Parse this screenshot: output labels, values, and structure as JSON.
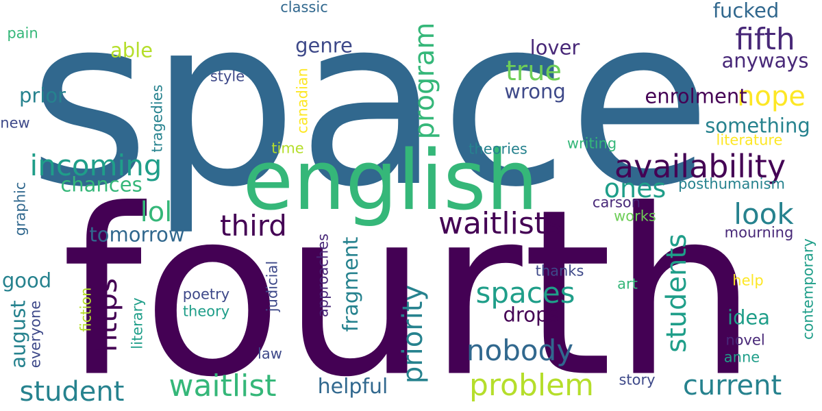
{
  "palette": {
    "dark_purple": "#440154",
    "indigo": "#482878",
    "slate": "#3e4989",
    "steel": "#31688e",
    "teal": "#26828e",
    "sea": "#1f9e89",
    "jade": "#35b779",
    "lime": "#6ece58",
    "chartreuse": "#b5de2b",
    "yellow": "#fde725"
  },
  "words": [
    {
      "text": "space",
      "weight": 1.0,
      "color": "steel"
    },
    {
      "text": "fourth",
      "weight": 0.98,
      "color": "dark_purple"
    },
    {
      "text": "english",
      "weight": 0.56,
      "color": "jade"
    },
    {
      "text": "availability",
      "weight": 0.2,
      "color": "dark_purple"
    },
    {
      "text": "waitlists",
      "weight": 0.19,
      "color": "dark_purple"
    },
    {
      "text": "incoming",
      "weight": 0.19,
      "color": "sea"
    },
    {
      "text": "fifth",
      "weight": 0.19,
      "color": "indigo"
    },
    {
      "text": "waitlist",
      "weight": 0.19,
      "color": "jade"
    },
    {
      "text": "student",
      "weight": 0.18,
      "color": "teal"
    },
    {
      "text": "spaces",
      "weight": 0.18,
      "color": "sea"
    },
    {
      "text": "program",
      "weight": 0.18,
      "color": "jade"
    },
    {
      "text": "priority",
      "weight": 0.18,
      "color": "teal"
    },
    {
      "text": "problem",
      "weight": 0.18,
      "color": "chartreuse"
    },
    {
      "text": "current",
      "weight": 0.17,
      "color": "teal"
    },
    {
      "text": "nobody",
      "weight": 0.17,
      "color": "steel"
    },
    {
      "text": "students",
      "weight": 0.17,
      "color": "sea"
    },
    {
      "text": "third",
      "weight": 0.17,
      "color": "dark_purple"
    },
    {
      "text": "look",
      "weight": 0.17,
      "color": "teal"
    },
    {
      "text": "https",
      "weight": 0.17,
      "color": "dark_purple"
    },
    {
      "text": "nope",
      "weight": 0.17,
      "color": "yellow"
    },
    {
      "text": "true",
      "weight": 0.17,
      "color": "lime"
    },
    {
      "text": "lol",
      "weight": 0.16,
      "color": "jade"
    },
    {
      "text": "ones",
      "weight": 0.16,
      "color": "sea"
    },
    {
      "text": "fragment",
      "weight": 0.11,
      "color": "teal"
    },
    {
      "text": "helpful",
      "weight": 0.11,
      "color": "steel"
    },
    {
      "text": "tomorrow",
      "weight": 0.11,
      "color": "steel"
    },
    {
      "text": "chances",
      "weight": 0.11,
      "color": "jade"
    },
    {
      "text": "genre",
      "weight": 0.11,
      "color": "slate"
    },
    {
      "text": "fucked",
      "weight": 0.11,
      "color": "steel"
    },
    {
      "text": "something",
      "weight": 0.11,
      "color": "teal"
    },
    {
      "text": "enrolment",
      "weight": 0.11,
      "color": "dark_purple"
    },
    {
      "text": "anyways",
      "weight": 0.11,
      "color": "indigo"
    },
    {
      "text": "lover",
      "weight": 0.1,
      "color": "indigo"
    },
    {
      "text": "wrong",
      "weight": 0.1,
      "color": "slate"
    },
    {
      "text": "drops",
      "weight": 0.1,
      "color": "dark_purple"
    },
    {
      "text": "idea",
      "weight": 0.1,
      "color": "sea"
    },
    {
      "text": "able",
      "weight": 0.1,
      "color": "chartreuse"
    },
    {
      "text": "prior",
      "weight": 0.1,
      "color": "teal"
    },
    {
      "text": "good",
      "weight": 0.1,
      "color": "teal"
    },
    {
      "text": "august",
      "weight": 0.1,
      "color": "teal"
    },
    {
      "text": "approaches",
      "weight": 0.08,
      "color": "indigo"
    },
    {
      "text": "judicial",
      "weight": 0.08,
      "color": "slate"
    },
    {
      "text": "poetry",
      "weight": 0.08,
      "color": "slate"
    },
    {
      "text": "theory",
      "weight": 0.08,
      "color": "sea"
    },
    {
      "text": "thanks",
      "weight": 0.08,
      "color": "slate"
    },
    {
      "text": "mourning",
      "weight": 0.08,
      "color": "indigo"
    },
    {
      "text": "contemporary",
      "weight": 0.08,
      "color": "sea"
    },
    {
      "text": "posthumanism",
      "weight": 0.08,
      "color": "teal"
    },
    {
      "text": "carson",
      "weight": 0.08,
      "color": "indigo"
    },
    {
      "text": "works",
      "weight": 0.08,
      "color": "lime"
    },
    {
      "text": "literature",
      "weight": 0.08,
      "color": "yellow"
    },
    {
      "text": "writing",
      "weight": 0.08,
      "color": "jade"
    },
    {
      "text": "theories",
      "weight": 0.08,
      "color": "teal"
    },
    {
      "text": "time",
      "weight": 0.08,
      "color": "chartreuse"
    },
    {
      "text": "canadian",
      "weight": 0.08,
      "color": "yellow"
    },
    {
      "text": "style",
      "weight": 0.08,
      "color": "slate"
    },
    {
      "text": "tragedies",
      "weight": 0.08,
      "color": "teal"
    },
    {
      "text": "pain",
      "weight": 0.08,
      "color": "jade"
    },
    {
      "text": "classic",
      "weight": 0.08,
      "color": "steel"
    },
    {
      "text": "new",
      "weight": 0.08,
      "color": "slate"
    },
    {
      "text": "graphic",
      "weight": 0.08,
      "color": "steel"
    },
    {
      "text": "everyone",
      "weight": 0.08,
      "color": "slate"
    },
    {
      "text": "fiction",
      "weight": 0.08,
      "color": "chartreuse"
    },
    {
      "text": "literary",
      "weight": 0.08,
      "color": "sea"
    },
    {
      "text": "law",
      "weight": 0.08,
      "color": "slate"
    },
    {
      "text": "story",
      "weight": 0.08,
      "color": "slate"
    },
    {
      "text": "art",
      "weight": 0.08,
      "color": "jade"
    },
    {
      "text": "help",
      "weight": 0.08,
      "color": "yellow"
    },
    {
      "text": "novel",
      "weight": 0.08,
      "color": "indigo"
    },
    {
      "text": "anne",
      "weight": 0.08,
      "color": "sea"
    }
  ]
}
